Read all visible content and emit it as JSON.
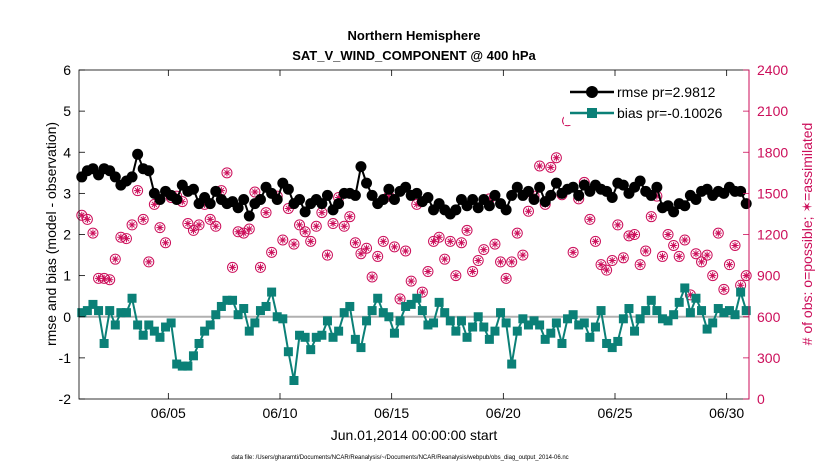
{
  "chart_data": {
    "type": "line",
    "title": "Northern Hemisphere",
    "subtitle": "SAT_V_WIND_COMPONENT @ 400 hPa",
    "xlabel": "Jun.01,2014 00:00:00 start",
    "ylabel_left": "rmse and bias (model - observation)",
    "ylabel_right": "# of obs: o=possible; ✶=assimilated",
    "footnote": "data file: /Users/gharamti/Documents/NCAR/Reanalysis/~/Documents/NCAR/Reanalysis/webpub/obs_diag_output_2014-06.nc",
    "xlim": [
      1,
      31
    ],
    "ylim_left": [
      -2,
      6
    ],
    "ylim_right": [
      0,
      2400
    ],
    "x_ticks": [
      5,
      10,
      15,
      20,
      25,
      30
    ],
    "x_tick_labels": [
      "06/05",
      "06/10",
      "06/15",
      "06/20",
      "06/25",
      "06/30"
    ],
    "y_left_ticks": [
      "-2",
      "-1",
      "0",
      "1",
      "2",
      "3",
      "4",
      "5",
      "6"
    ],
    "y_right_ticks": [
      "0",
      "300",
      "600",
      "900",
      "1200",
      "1500",
      "1800",
      "2100",
      "2400"
    ],
    "colors": {
      "rmse": "#000000",
      "bias": "#0b8077",
      "obs": "#cc0e5a",
      "zero_line": "#b0b0b0"
    },
    "legend": [
      "rmse pr=2.9812",
      "bias pr=-0.10026"
    ],
    "x": [
      1.125,
      1.375,
      1.625,
      1.875,
      2.125,
      2.375,
      2.625,
      2.875,
      3.125,
      3.375,
      3.625,
      3.875,
      4.125,
      4.375,
      4.625,
      4.875,
      5.125,
      5.375,
      5.625,
      5.875,
      6.125,
      6.375,
      6.625,
      6.875,
      7.125,
      7.375,
      7.625,
      7.875,
      8.125,
      8.375,
      8.625,
      8.875,
      9.125,
      9.375,
      9.625,
      9.875,
      10.125,
      10.375,
      10.625,
      10.875,
      11.125,
      11.375,
      11.625,
      11.875,
      12.125,
      12.375,
      12.625,
      12.875,
      13.125,
      13.375,
      13.625,
      13.875,
      14.125,
      14.375,
      14.625,
      14.875,
      15.125,
      15.375,
      15.625,
      15.875,
      16.125,
      16.375,
      16.625,
      16.875,
      17.125,
      17.375,
      17.625,
      17.875,
      18.125,
      18.375,
      18.625,
      18.875,
      19.125,
      19.375,
      19.625,
      19.875,
      20.125,
      20.375,
      20.625,
      20.875,
      21.125,
      21.375,
      21.625,
      21.875,
      22.125,
      22.375,
      22.625,
      22.875,
      23.125,
      23.375,
      23.625,
      23.875,
      24.125,
      24.375,
      24.625,
      24.875,
      25.125,
      25.375,
      25.625,
      25.875,
      26.125,
      26.375,
      26.625,
      26.875,
      27.125,
      27.375,
      27.625,
      27.875,
      28.125,
      28.375,
      28.625,
      28.875,
      29.125,
      29.375,
      29.625,
      29.875,
      30.125,
      30.375,
      30.625,
      30.875
    ],
    "series": [
      {
        "name": "rmse",
        "axis": "left",
        "marker": "circle",
        "values": [
          3.4,
          3.55,
          3.6,
          3.45,
          3.6,
          3.55,
          3.4,
          3.2,
          3.3,
          3.4,
          3.95,
          3.6,
          3.55,
          3.0,
          2.85,
          3.05,
          2.95,
          2.85,
          3.2,
          3.05,
          3.1,
          2.75,
          2.9,
          2.75,
          3.05,
          2.85,
          2.75,
          2.8,
          2.65,
          2.85,
          2.45,
          2.75,
          2.85,
          3.15,
          3.0,
          2.85,
          3.25,
          3.1,
          2.75,
          2.85,
          2.55,
          2.75,
          2.85,
          2.75,
          2.95,
          2.6,
          2.75,
          3.0,
          3.0,
          2.95,
          3.65,
          3.25,
          2.95,
          2.75,
          2.85,
          3.1,
          2.85,
          3.05,
          3.15,
          2.95,
          3.0,
          2.8,
          2.9,
          2.6,
          2.75,
          2.6,
          2.5,
          2.6,
          2.85,
          2.7,
          2.85,
          2.65,
          2.85,
          2.7,
          2.95,
          2.75,
          2.6,
          2.95,
          3.15,
          2.95,
          3.05,
          2.85,
          3.15,
          2.8,
          2.95,
          3.25,
          3.0,
          3.1,
          3.15,
          2.95,
          3.2,
          3.05,
          3.2,
          3.1,
          3.05,
          2.9,
          3.25,
          3.2,
          3.0,
          3.15,
          3.3,
          3.05,
          2.95,
          3.15,
          2.65,
          2.7,
          2.55,
          2.75,
          2.7,
          2.95,
          2.85,
          3.05,
          3.1,
          2.95,
          3.05,
          3.0,
          3.15,
          3.05,
          3.05,
          2.75
        ]
      },
      {
        "name": "bias",
        "axis": "left",
        "marker": "square",
        "values": [
          0.1,
          0.15,
          0.3,
          0.15,
          -0.65,
          0.15,
          -0.2,
          0.1,
          0.1,
          0.45,
          -0.2,
          -0.45,
          -0.2,
          -0.35,
          -0.5,
          -0.25,
          -0.15,
          -1.15,
          -1.2,
          -1.2,
          -0.95,
          -0.65,
          -0.35,
          -0.2,
          0.05,
          0.25,
          0.4,
          0.4,
          0.05,
          0.2,
          -0.35,
          -0.15,
          0.15,
          0.25,
          0.6,
          0.0,
          -0.05,
          -0.85,
          -1.55,
          -0.45,
          -0.5,
          -0.8,
          -0.5,
          -0.45,
          -0.1,
          -0.5,
          -0.35,
          0.1,
          0.25,
          -0.55,
          -0.75,
          -0.1,
          0.15,
          0.45,
          0.1,
          0.0,
          -0.4,
          -0.1,
          0.25,
          0.3,
          0.45,
          0.15,
          -0.2,
          -0.15,
          0.35,
          0.1,
          -0.1,
          -0.35,
          -0.1,
          -0.5,
          -0.25,
          0.0,
          -0.25,
          -0.55,
          -0.35,
          0.1,
          -0.15,
          -1.15,
          -0.35,
          -0.05,
          -0.2,
          -0.1,
          -0.2,
          -0.55,
          -0.4,
          -0.15,
          -0.65,
          -0.05,
          0.05,
          -0.2,
          -0.15,
          -0.5,
          -0.25,
          0.15,
          -0.65,
          -0.75,
          -0.6,
          -0.05,
          0.2,
          -0.35,
          -0.05,
          0.15,
          0.4,
          0.15,
          -0.05,
          -0.1,
          0.05,
          0.35,
          0.7,
          0.1,
          0.45,
          0.15,
          -0.3,
          -0.15,
          0.2,
          0.1,
          0.15,
          0.05,
          0.6,
          0.15
        ]
      },
      {
        "name": "obs_possible",
        "axis": "right",
        "marker": "circle-asterisk",
        "values": [
          1340,
          1310,
          1210,
          880,
          880,
          870,
          1020,
          1180,
          1170,
          1270,
          1520,
          1310,
          1000,
          1420,
          1250,
          1140,
          1470,
          1480,
          1440,
          1280,
          1230,
          1270,
          1420,
          1310,
          1260,
          1520,
          1650,
          960,
          1220,
          1210,
          1240,
          1510,
          960,
          1360,
          1070,
          1480,
          1160,
          1390,
          1130,
          1270,
          1220,
          1150,
          1260,
          1360,
          1050,
          1280,
          1470,
          1260,
          1330,
          1140,
          1060,
          1100,
          890,
          1040,
          1150,
          1480,
          1110,
          730,
          1080,
          860,
          1420,
          780,
          930,
          1150,
          1180,
          1020,
          1150,
          900,
          1140,
          1230,
          930,
          1010,
          1090,
          1460,
          1130,
          1000,
          880,
          1000,
          1210,
          1050,
          1370,
          1480,
          1700,
          1420,
          1690,
          1760,
          1490,
          2030,
          1070,
          1460,
          1580,
          1310,
          1150,
          980,
          940,
          1010,
          1270,
          1030,
          1190,
          1200,
          980,
          1080,
          1330,
          1480,
          1040,
          1200,
          1120,
          1040,
          1160,
          760,
          1060,
          1000,
          1050,
          900,
          1210,
          800,
          980,
          1120,
          830,
          900
        ]
      },
      {
        "name": "obs_assimilated",
        "axis": "right",
        "marker": "asterisk",
        "values": [
          1340,
          1310,
          1210,
          880,
          880,
          870,
          1020,
          1180,
          1170,
          1270,
          1520,
          1310,
          1000,
          1420,
          1250,
          1140,
          1470,
          1480,
          1440,
          1280,
          1230,
          1270,
          1420,
          1310,
          1260,
          1520,
          1650,
          960,
          1220,
          1210,
          1240,
          1510,
          960,
          1360,
          1070,
          1480,
          1160,
          1390,
          1130,
          1270,
          1220,
          1150,
          1260,
          1360,
          1050,
          1280,
          1470,
          1260,
          1330,
          1140,
          1060,
          1100,
          890,
          1040,
          1150,
          1480,
          1110,
          730,
          1080,
          860,
          1420,
          780,
          930,
          1150,
          1180,
          1020,
          1150,
          900,
          1140,
          1230,
          930,
          1010,
          1090,
          1460,
          1130,
          1000,
          880,
          1000,
          1210,
          1050,
          1370,
          1480,
          1700,
          1420,
          1690,
          1760,
          1490,
          2030,
          1070,
          1460,
          1580,
          1310,
          1150,
          980,
          940,
          1010,
          1270,
          1030,
          1190,
          1200,
          980,
          1080,
          1330,
          1480,
          1040,
          1200,
          1120,
          1040,
          1160,
          760,
          1060,
          1000,
          1050,
          900,
          1210,
          800,
          980,
          1120,
          830,
          900
        ]
      }
    ]
  }
}
